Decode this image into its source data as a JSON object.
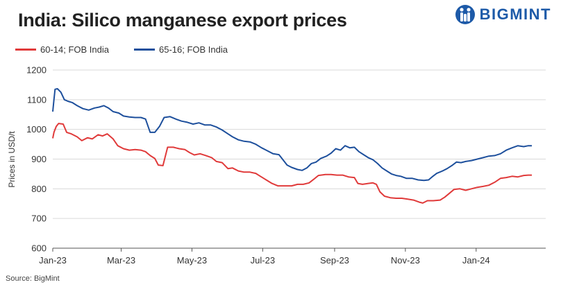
{
  "logo": {
    "text": "BIGMINT",
    "color": "#1d5aa8"
  },
  "source": "Source: BigMint",
  "chart_data": {
    "type": "line",
    "title": "India: Silico manganese export prices",
    "ylabel": "Prices in USD/t",
    "xlabel": "",
    "ylim": [
      600,
      1200
    ],
    "yticks": [
      600,
      700,
      800,
      900,
      1000,
      1100,
      1200
    ],
    "xlim": [
      "2023-01-01",
      "2024-03-01"
    ],
    "xticks": [
      {
        "date": "2023-01-01",
        "label": "Jan-23"
      },
      {
        "date": "2023-03-01",
        "label": "Mar-23"
      },
      {
        "date": "2023-05-01",
        "label": "May-23"
      },
      {
        "date": "2023-07-01",
        "label": "Jul-23"
      },
      {
        "date": "2023-09-01",
        "label": "Sep-23"
      },
      {
        "date": "2023-11-01",
        "label": "Nov-23"
      },
      {
        "date": "2024-01-01",
        "label": "Jan-24"
      }
    ],
    "legend_position": "top-left",
    "grid": "horizontal",
    "series": [
      {
        "name": "60-14; FOB India",
        "color": "#e03a3a",
        "points": [
          [
            "2023-01-01",
            970
          ],
          [
            "2023-01-02",
            990
          ],
          [
            "2023-01-04",
            1010
          ],
          [
            "2023-01-06",
            1020
          ],
          [
            "2023-01-10",
            1018
          ],
          [
            "2023-01-13",
            990
          ],
          [
            "2023-01-17",
            985
          ],
          [
            "2023-01-22",
            975
          ],
          [
            "2023-01-26",
            962
          ],
          [
            "2023-01-31",
            972
          ],
          [
            "2023-02-04",
            968
          ],
          [
            "2023-02-09",
            982
          ],
          [
            "2023-02-13",
            978
          ],
          [
            "2023-02-17",
            985
          ],
          [
            "2023-02-22",
            968
          ],
          [
            "2023-02-26",
            945
          ],
          [
            "2023-03-03",
            935
          ],
          [
            "2023-03-08",
            930
          ],
          [
            "2023-03-13",
            932
          ],
          [
            "2023-03-18",
            930
          ],
          [
            "2023-03-22",
            925
          ],
          [
            "2023-03-26",
            912
          ],
          [
            "2023-03-30",
            902
          ],
          [
            "2023-04-02",
            880
          ],
          [
            "2023-04-06",
            878
          ],
          [
            "2023-04-10",
            940
          ],
          [
            "2023-04-15",
            940
          ],
          [
            "2023-04-20",
            935
          ],
          [
            "2023-04-25",
            932
          ],
          [
            "2023-04-29",
            922
          ],
          [
            "2023-05-03",
            914
          ],
          [
            "2023-05-08",
            918
          ],
          [
            "2023-05-13",
            912
          ],
          [
            "2023-05-18",
            905
          ],
          [
            "2023-05-22",
            892
          ],
          [
            "2023-05-27",
            888
          ],
          [
            "2023-06-01",
            868
          ],
          [
            "2023-06-05",
            870
          ],
          [
            "2023-06-10",
            860
          ],
          [
            "2023-06-15",
            856
          ],
          [
            "2023-06-20",
            856
          ],
          [
            "2023-06-25",
            852
          ],
          [
            "2023-06-29",
            842
          ],
          [
            "2023-07-04",
            830
          ],
          [
            "2023-07-09",
            818
          ],
          [
            "2023-07-14",
            810
          ],
          [
            "2023-07-20",
            810
          ],
          [
            "2023-07-26",
            810
          ],
          [
            "2023-07-31",
            815
          ],
          [
            "2023-08-05",
            815
          ],
          [
            "2023-08-10",
            820
          ],
          [
            "2023-08-14",
            832
          ],
          [
            "2023-08-18",
            845
          ],
          [
            "2023-08-24",
            848
          ],
          [
            "2023-08-29",
            848
          ],
          [
            "2023-09-03",
            846
          ],
          [
            "2023-09-08",
            846
          ],
          [
            "2023-09-13",
            840
          ],
          [
            "2023-09-18",
            838
          ],
          [
            "2023-09-21",
            818
          ],
          [
            "2023-09-25",
            815
          ],
          [
            "2023-09-30",
            818
          ],
          [
            "2023-10-04",
            820
          ],
          [
            "2023-10-07",
            815
          ],
          [
            "2023-10-10",
            790
          ],
          [
            "2023-10-14",
            775
          ],
          [
            "2023-10-19",
            770
          ],
          [
            "2023-10-24",
            768
          ],
          [
            "2023-10-29",
            768
          ],
          [
            "2023-11-03",
            765
          ],
          [
            "2023-11-08",
            762
          ],
          [
            "2023-11-13",
            755
          ],
          [
            "2023-11-16",
            752
          ],
          [
            "2023-11-20",
            760
          ],
          [
            "2023-11-25",
            760
          ],
          [
            "2023-12-01",
            762
          ],
          [
            "2023-12-05",
            772
          ],
          [
            "2023-12-09",
            785
          ],
          [
            "2023-12-13",
            798
          ],
          [
            "2023-12-18",
            800
          ],
          [
            "2023-12-23",
            795
          ],
          [
            "2023-12-28",
            800
          ],
          [
            "2024-01-02",
            805
          ],
          [
            "2024-01-07",
            808
          ],
          [
            "2024-01-12",
            812
          ],
          [
            "2024-01-17",
            822
          ],
          [
            "2024-01-22",
            835
          ],
          [
            "2024-01-27",
            838
          ],
          [
            "2024-02-01",
            842
          ],
          [
            "2024-02-06",
            840
          ],
          [
            "2024-02-11",
            845
          ],
          [
            "2024-02-15",
            846
          ],
          [
            "2024-02-18",
            846
          ]
        ]
      },
      {
        "name": "65-16; FOB India",
        "color": "#1d4f9c",
        "points": [
          [
            "2023-01-01",
            1060
          ],
          [
            "2023-01-02",
            1100
          ],
          [
            "2023-01-03",
            1135
          ],
          [
            "2023-01-05",
            1137
          ],
          [
            "2023-01-08",
            1125
          ],
          [
            "2023-01-11",
            1100
          ],
          [
            "2023-01-14",
            1095
          ],
          [
            "2023-01-18",
            1090
          ],
          [
            "2023-01-22",
            1080
          ],
          [
            "2023-01-27",
            1070
          ],
          [
            "2023-02-01",
            1065
          ],
          [
            "2023-02-06",
            1072
          ],
          [
            "2023-02-10",
            1075
          ],
          [
            "2023-02-14",
            1080
          ],
          [
            "2023-02-18",
            1072
          ],
          [
            "2023-02-22",
            1060
          ],
          [
            "2023-02-27",
            1055
          ],
          [
            "2023-03-03",
            1045
          ],
          [
            "2023-03-08",
            1042
          ],
          [
            "2023-03-13",
            1040
          ],
          [
            "2023-03-18",
            1040
          ],
          [
            "2023-03-22",
            1035
          ],
          [
            "2023-03-26",
            990
          ],
          [
            "2023-03-30",
            990
          ],
          [
            "2023-04-03",
            1010
          ],
          [
            "2023-04-07",
            1040
          ],
          [
            "2023-04-12",
            1043
          ],
          [
            "2023-04-17",
            1035
          ],
          [
            "2023-04-22",
            1028
          ],
          [
            "2023-04-27",
            1024
          ],
          [
            "2023-05-02",
            1018
          ],
          [
            "2023-05-07",
            1022
          ],
          [
            "2023-05-12",
            1015
          ],
          [
            "2023-05-17",
            1015
          ],
          [
            "2023-05-22",
            1008
          ],
          [
            "2023-05-27",
            998
          ],
          [
            "2023-06-01",
            985
          ],
          [
            "2023-06-05",
            975
          ],
          [
            "2023-06-10",
            965
          ],
          [
            "2023-06-15",
            960
          ],
          [
            "2023-06-20",
            958
          ],
          [
            "2023-06-25",
            950
          ],
          [
            "2023-06-30",
            938
          ],
          [
            "2023-07-05",
            928
          ],
          [
            "2023-07-10",
            918
          ],
          [
            "2023-07-15",
            915
          ],
          [
            "2023-07-18",
            900
          ],
          [
            "2023-07-22",
            880
          ],
          [
            "2023-07-26",
            872
          ],
          [
            "2023-07-31",
            865
          ],
          [
            "2023-08-04",
            862
          ],
          [
            "2023-08-08",
            870
          ],
          [
            "2023-08-12",
            885
          ],
          [
            "2023-08-16",
            890
          ],
          [
            "2023-08-20",
            902
          ],
          [
            "2023-08-25",
            910
          ],
          [
            "2023-08-29",
            920
          ],
          [
            "2023-09-02",
            935
          ],
          [
            "2023-09-06",
            930
          ],
          [
            "2023-09-10",
            945
          ],
          [
            "2023-09-14",
            938
          ],
          [
            "2023-09-18",
            940
          ],
          [
            "2023-09-22",
            925
          ],
          [
            "2023-09-26",
            915
          ],
          [
            "2023-09-30",
            905
          ],
          [
            "2023-10-04",
            898
          ],
          [
            "2023-10-08",
            885
          ],
          [
            "2023-10-12",
            870
          ],
          [
            "2023-10-16",
            860
          ],
          [
            "2023-10-20",
            850
          ],
          [
            "2023-10-24",
            845
          ],
          [
            "2023-10-28",
            842
          ],
          [
            "2023-11-02",
            835
          ],
          [
            "2023-11-07",
            835
          ],
          [
            "2023-11-12",
            830
          ],
          [
            "2023-11-17",
            828
          ],
          [
            "2023-11-21",
            830
          ],
          [
            "2023-11-24",
            840
          ],
          [
            "2023-11-28",
            852
          ],
          [
            "2023-12-03",
            860
          ],
          [
            "2023-12-07",
            868
          ],
          [
            "2023-12-11",
            878
          ],
          [
            "2023-12-15",
            890
          ],
          [
            "2023-12-19",
            888
          ],
          [
            "2023-12-23",
            892
          ],
          [
            "2023-12-28",
            895
          ],
          [
            "2024-01-02",
            900
          ],
          [
            "2024-01-07",
            905
          ],
          [
            "2024-01-12",
            910
          ],
          [
            "2024-01-17",
            912
          ],
          [
            "2024-01-22",
            918
          ],
          [
            "2024-01-27",
            930
          ],
          [
            "2024-02-01",
            938
          ],
          [
            "2024-02-06",
            945
          ],
          [
            "2024-02-11",
            942
          ],
          [
            "2024-02-15",
            945
          ],
          [
            "2024-02-18",
            945
          ]
        ]
      }
    ]
  }
}
